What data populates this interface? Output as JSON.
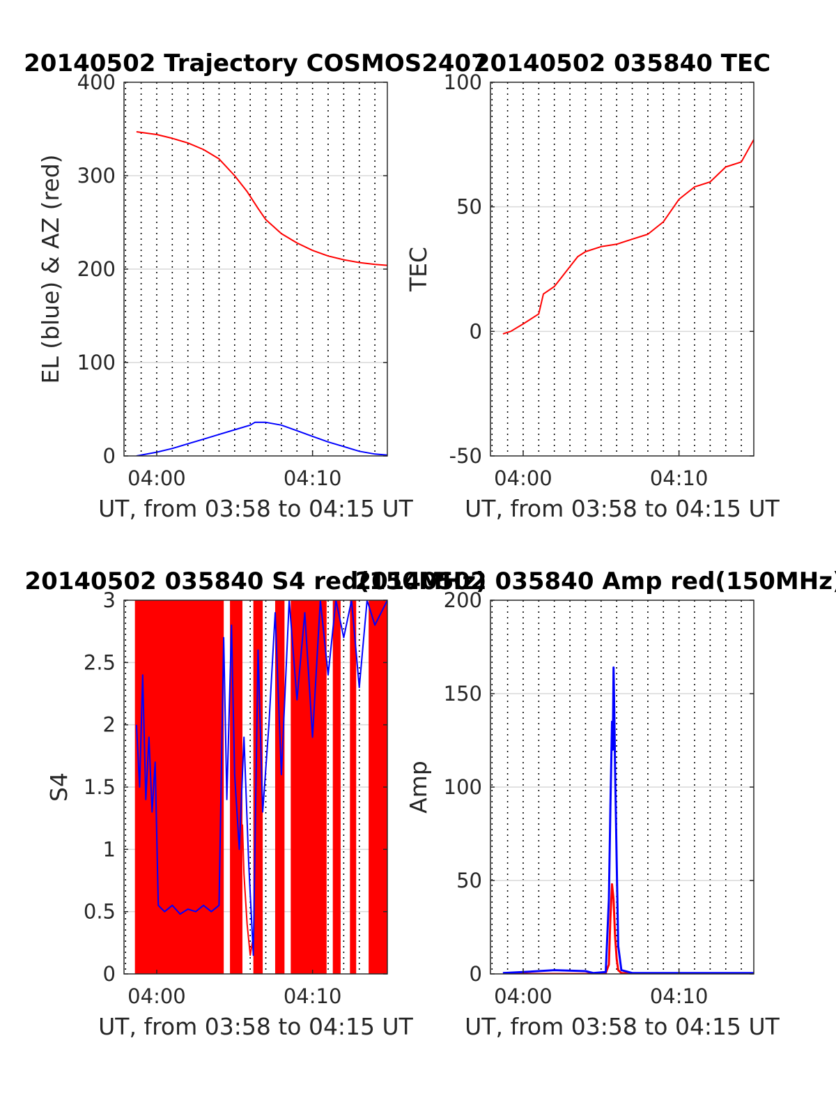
{
  "chart_data": [
    {
      "type": "line",
      "title": "20140502 Trajectory COSMOS2407",
      "xlabel": "UT, from 03:58 to 04:15 UT",
      "ylabel": "EL (blue) & AZ (red)",
      "xlim": [
        3.9,
        20.8
      ],
      "ylim": [
        0,
        400
      ],
      "grid": true,
      "x_ticks": [
        {
          "label": "04:00",
          "value": 6.0
        },
        {
          "label": "04:10",
          "value": 16.0
        }
      ],
      "y_ticks": [
        "0",
        "100",
        "200",
        "300",
        "400"
      ],
      "series": [
        {
          "key": "az",
          "color": "#ff0000",
          "style": "line",
          "x": [
            4.7,
            6,
            7,
            8,
            9,
            10,
            11,
            11.8,
            12.5,
            13,
            14,
            15,
            16,
            17,
            18,
            19,
            20,
            20.8
          ],
          "y": [
            347,
            344,
            340,
            335,
            328,
            318,
            300,
            283,
            265,
            253,
            238,
            228,
            220,
            214,
            210,
            207,
            205,
            204
          ]
        },
        {
          "key": "el",
          "color": "#0000ff",
          "style": "line",
          "x": [
            4.7,
            6,
            7,
            8,
            9,
            10,
            11,
            12,
            12.3,
            13,
            14,
            15,
            16,
            17,
            18,
            19,
            20,
            20.8
          ],
          "y": [
            0,
            4,
            8,
            13,
            18,
            23,
            28,
            33,
            36,
            36,
            33,
            27,
            21,
            15,
            10,
            5,
            2,
            1
          ]
        }
      ]
    },
    {
      "type": "line",
      "title": "20140502 035840 TEC",
      "xlabel": "UT, from 03:58 to 04:15 UT",
      "ylabel": "TEC",
      "xlim": [
        3.9,
        20.8
      ],
      "ylim": [
        -50,
        100
      ],
      "grid": true,
      "x_ticks": [
        {
          "label": "04:00",
          "value": 6.0
        },
        {
          "label": "04:10",
          "value": 16.0
        }
      ],
      "y_ticks": [
        "-50",
        "0",
        "50",
        "100"
      ],
      "series": [
        {
          "key": "tec",
          "color": "#ff0000",
          "style": "line",
          "x": [
            4.7,
            5.2,
            6,
            7,
            7.3,
            8,
            8.5,
            9.5,
            10,
            11,
            12,
            13,
            14,
            15,
            16,
            17,
            18,
            19,
            20,
            20.8
          ],
          "y": [
            -1,
            0,
            3,
            7,
            15,
            18,
            22,
            30,
            32,
            34,
            35,
            37,
            39,
            44,
            53,
            58,
            60,
            66,
            68,
            77
          ]
        }
      ]
    },
    {
      "type": "line",
      "title": "20140502 035840 S4 red(150MHz)",
      "xlabel": "UT, from 03:58 to 04:15 UT",
      "ylabel": "S4",
      "xlim": [
        3.9,
        20.8
      ],
      "ylim": [
        0,
        3
      ],
      "grid": true,
      "x_ticks": [
        {
          "label": "04:00",
          "value": 6.0
        },
        {
          "label": "04:10",
          "value": 16.0
        }
      ],
      "y_ticks": [
        "0",
        "0.5",
        "1",
        "1.5",
        "2",
        "2.5",
        "3"
      ],
      "series": [
        {
          "key": "s4_red",
          "color": "#ff0000",
          "style": "fill",
          "bands": [
            [
              4.6,
              10.3
            ],
            [
              10.7,
              11.5
            ],
            [
              12.2,
              12.8
            ],
            [
              13.6,
              14.2
            ],
            [
              14.6,
              16.9
            ],
            [
              17.3,
              17.8
            ],
            [
              18.4,
              18.8
            ],
            [
              19.6,
              20.8
            ]
          ],
          "x": [
            11.5,
            11.6,
            11.8,
            12.0,
            12.2
          ],
          "y": [
            1.2,
            0.8,
            0.4,
            0.15,
            0.3
          ]
        },
        {
          "key": "s4_blue",
          "color": "#0000ff",
          "style": "line",
          "x": [
            4.7,
            4.9,
            5.1,
            5.3,
            5.5,
            5.7,
            5.9,
            6.1,
            6.5,
            7,
            7.5,
            8,
            8.5,
            9,
            9.5,
            10,
            10.3,
            10.5,
            10.8,
            11,
            11.3,
            11.6,
            11.9,
            12.2,
            12.5,
            12.8,
            13.2,
            13.6,
            14,
            14.5,
            15,
            15.5,
            16,
            16.5,
            17,
            17.5,
            18,
            18.5,
            19,
            19.5,
            20,
            20.8
          ],
          "y": [
            2.0,
            1.5,
            2.4,
            1.4,
            1.9,
            1.3,
            1.7,
            0.55,
            0.5,
            0.55,
            0.48,
            0.52,
            0.5,
            0.55,
            0.5,
            0.55,
            2.7,
            1.4,
            2.8,
            1.6,
            1.0,
            1.9,
            0.9,
            0.15,
            2.6,
            1.3,
            2.0,
            2.9,
            1.6,
            3.0,
            2.2,
            2.9,
            1.9,
            3.0,
            2.4,
            3.0,
            2.7,
            3.0,
            2.3,
            3.0,
            2.8,
            3.0
          ]
        }
      ]
    },
    {
      "type": "line",
      "title": "20140502 035840 Amp red(150MHz)",
      "xlabel": "UT, from 03:58 to 04:15 UT",
      "ylabel": "Amp",
      "xlim": [
        3.9,
        20.8
      ],
      "ylim": [
        0,
        200
      ],
      "grid": true,
      "x_ticks": [
        {
          "label": "04:00",
          "value": 6.0
        },
        {
          "label": "04:10",
          "value": 16.0
        }
      ],
      "y_ticks": [
        "0",
        "50",
        "100",
        "150",
        "200"
      ],
      "series": [
        {
          "key": "amp_red",
          "color": "#ff0000",
          "style": "line",
          "x": [
            4.7,
            10.5,
            11.3,
            11.5,
            11.6,
            11.7,
            11.8,
            11.9,
            12.0,
            12.1,
            12.3,
            14,
            20.8
          ],
          "y": [
            0,
            0,
            0.5,
            5,
            30,
            48,
            40,
            20,
            8,
            2,
            0.5,
            0,
            0
          ]
        },
        {
          "key": "amp_blue",
          "color": "#0000ff",
          "style": "line",
          "x": [
            4.7,
            6,
            8,
            10,
            10.5,
            11.3,
            11.5,
            11.6,
            11.7,
            11.75,
            11.8,
            11.85,
            11.9,
            12.0,
            12.1,
            12.3,
            13,
            20.8
          ],
          "y": [
            0.5,
            1,
            2,
            1.5,
            0.5,
            1,
            40,
            90,
            135,
            120,
            164,
            140,
            110,
            60,
            15,
            2,
            0.5,
            0.5
          ]
        }
      ]
    }
  ]
}
